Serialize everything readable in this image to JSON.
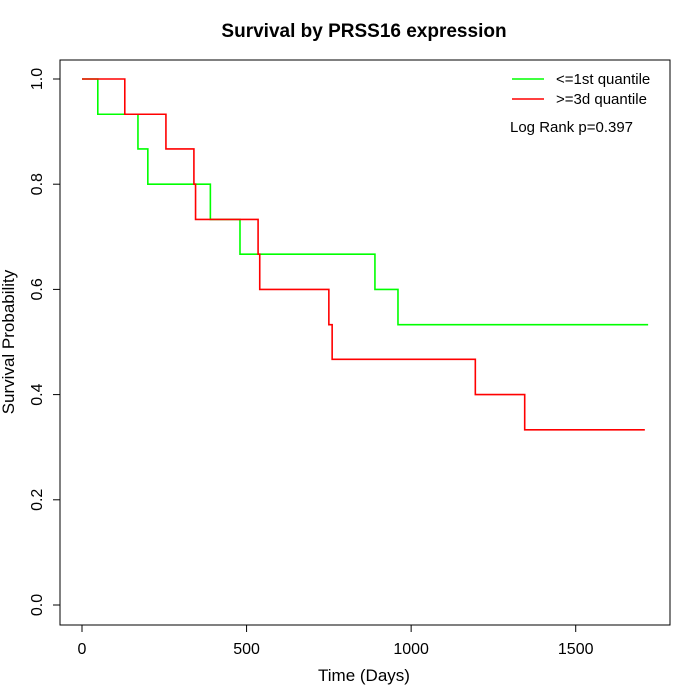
{
  "chart_data": {
    "type": "line",
    "subtype": "kaplan-meier-step",
    "title": "Survival by PRSS16 expression",
    "xlabel": "Time (Days)",
    "ylabel": "Survival Probability",
    "xlim": [
      0,
      1750
    ],
    "ylim": [
      0,
      1.0
    ],
    "x_ticks": [
      0,
      500,
      1000,
      1500
    ],
    "x_tick_labels": [
      "0",
      "500",
      "1000",
      "1500"
    ],
    "y_ticks": [
      0,
      0.2,
      0.4,
      0.6,
      0.8,
      1.0
    ],
    "y_tick_labels": [
      "0.0",
      "0.2",
      "0.4",
      "0.6",
      "0.8",
      "1.0"
    ],
    "grid": false,
    "legend_position": "top-right",
    "annotation": "Log Rank p=0.397",
    "series": [
      {
        "name": "<=1st quantile",
        "color": "#00ff00",
        "x": [
          0,
          48,
          170,
          200,
          390,
          480,
          890,
          960,
          1720
        ],
        "y": [
          1.0,
          0.933,
          0.867,
          0.8,
          0.733,
          0.667,
          0.6,
          0.533,
          0.533
        ]
      },
      {
        "name": ">=3d quantile",
        "color": "#ff0000",
        "x": [
          0,
          130,
          255,
          340,
          345,
          535,
          540,
          750,
          760,
          1195,
          1345,
          1710
        ],
        "y": [
          1.0,
          0.933,
          0.867,
          0.8,
          0.733,
          0.667,
          0.6,
          0.533,
          0.467,
          0.4,
          0.333,
          0.333
        ]
      }
    ]
  }
}
